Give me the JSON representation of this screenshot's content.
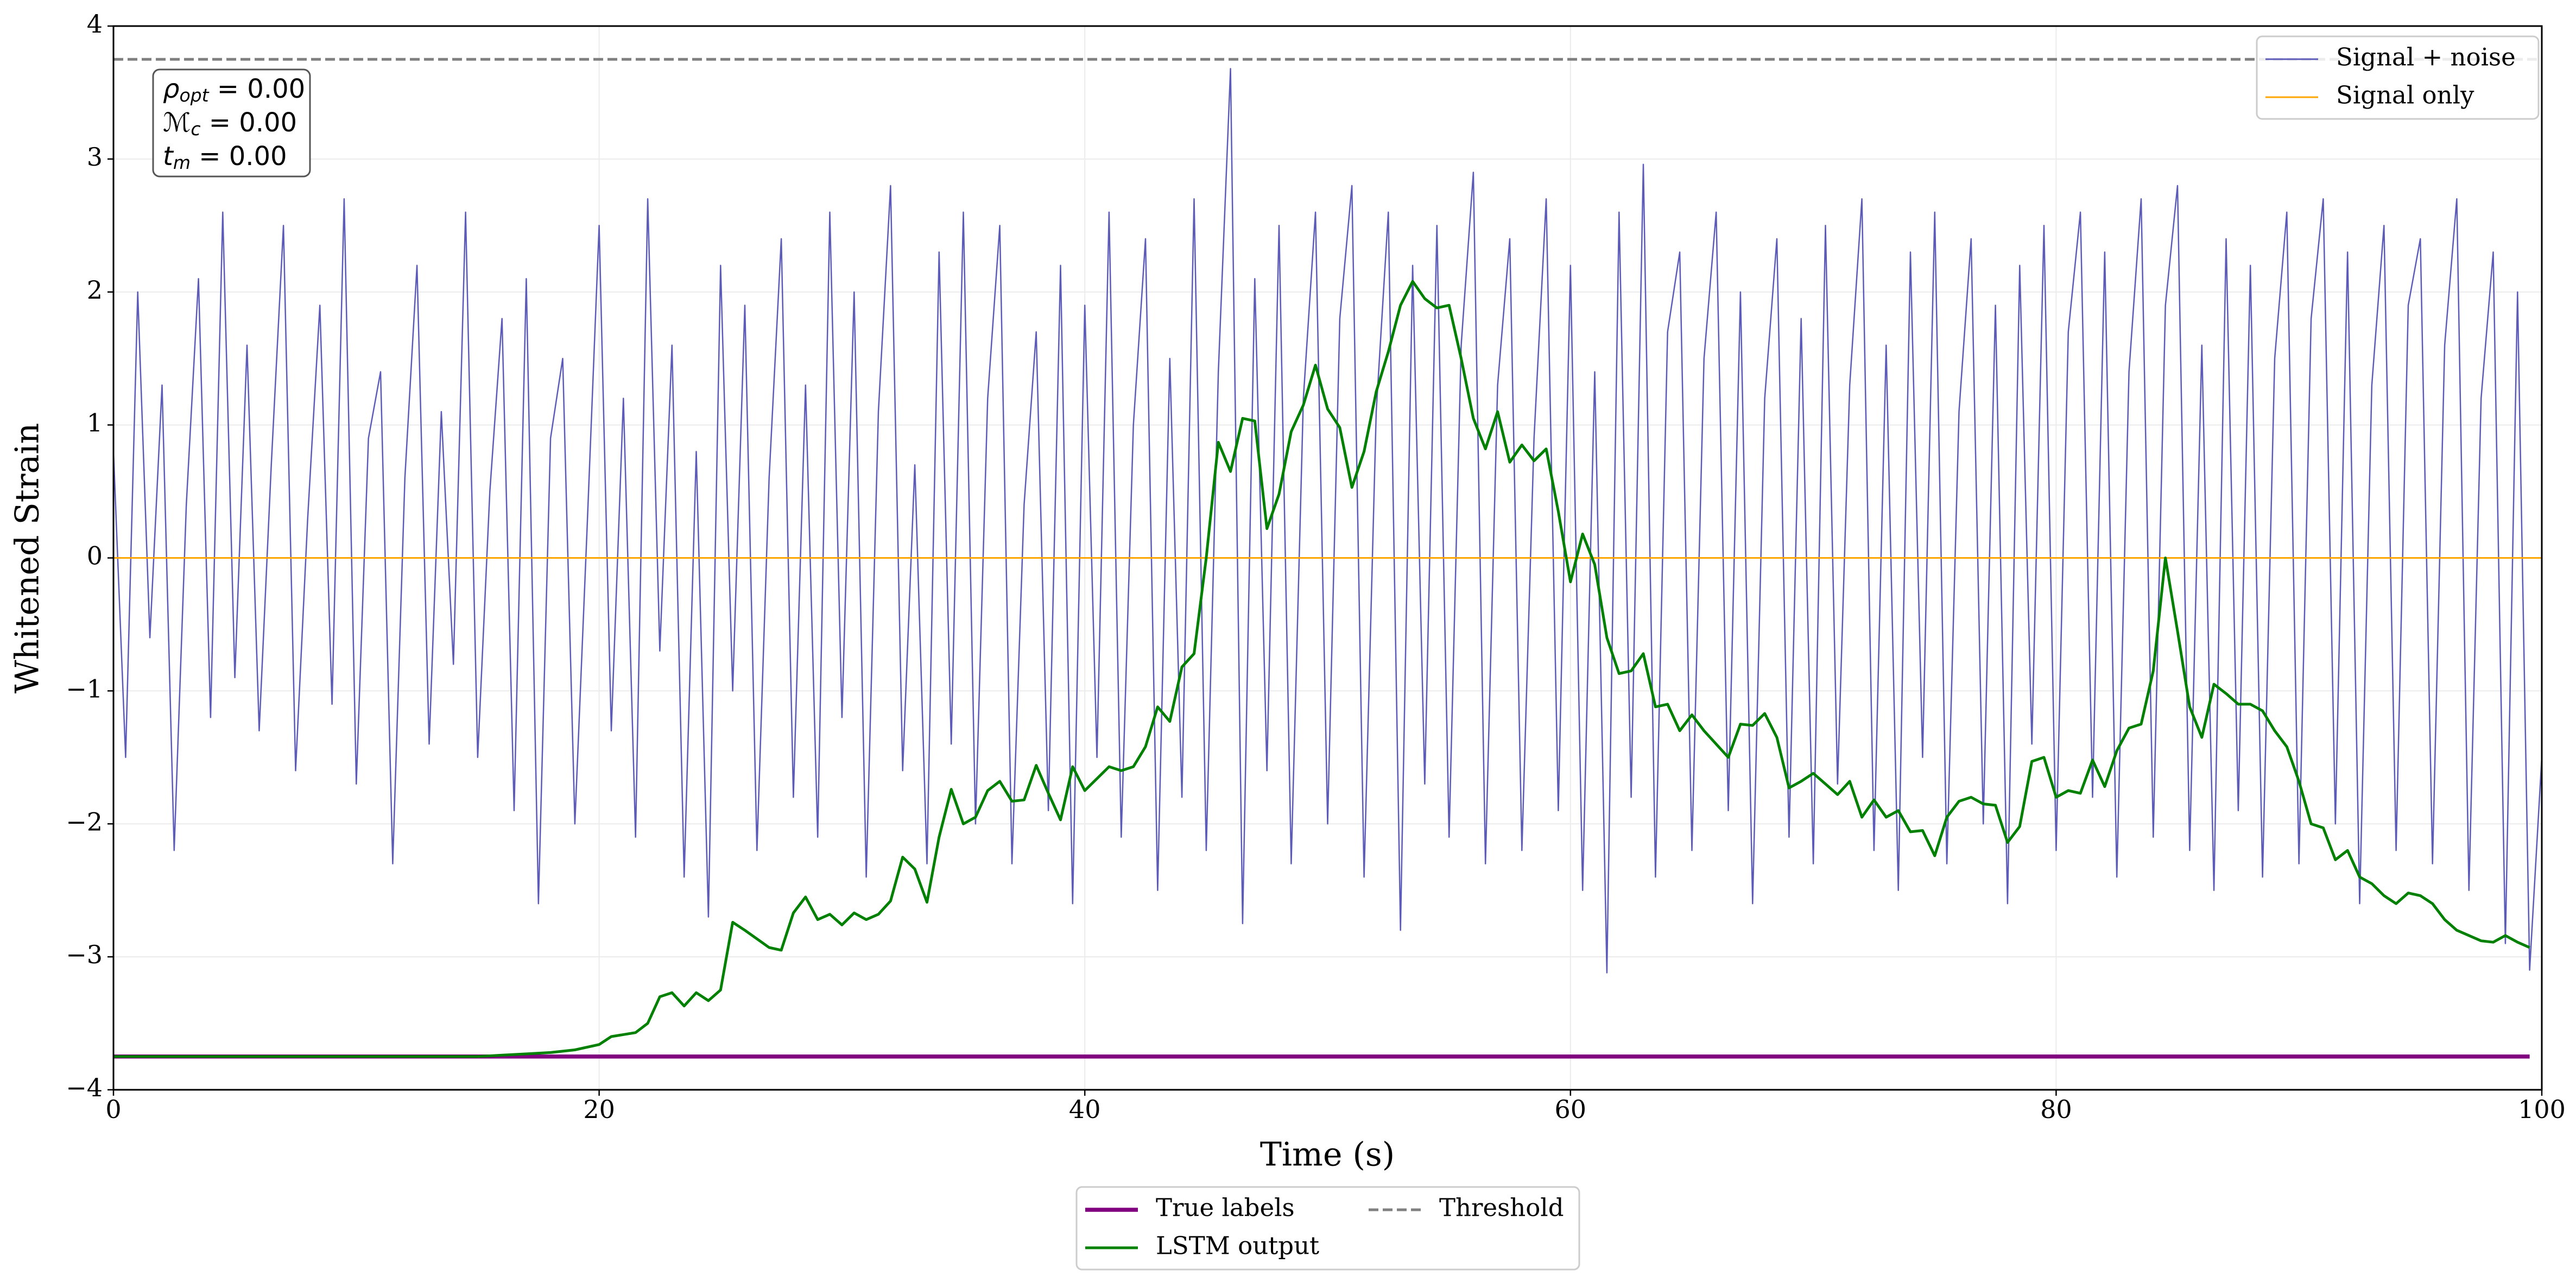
{
  "chart_data": {
    "type": "line",
    "xlabel": "Time (s)",
    "ylabel": "Whitened Strain",
    "xlim": [
      0,
      100
    ],
    "ylim": [
      -4,
      4
    ],
    "xticks": [
      0,
      20,
      40,
      60,
      80,
      100
    ],
    "yticks": [
      {
        "value": -4,
        "label": "−4"
      },
      {
        "value": -3,
        "label": "−3"
      },
      {
        "value": -2,
        "label": "−2"
      },
      {
        "value": -1,
        "label": "−1"
      },
      0,
      1,
      2,
      3,
      4
    ],
    "grid": true,
    "annotation": [
      {
        "symbol": "ρ",
        "sub": "opt",
        "text": " = 0.00"
      },
      {
        "symbol": "ℳ",
        "sub": "c",
        "text": " = 0.00"
      },
      {
        "symbol": "t",
        "sub": "m",
        "text": " = 0.00"
      }
    ],
    "series": [
      {
        "name": "Signal + noise",
        "color": "#5c5cb8",
        "legend": "upper right",
        "x": [
          0,
          0.5,
          1,
          1.5,
          2,
          2.5,
          3,
          3.5,
          4,
          4.5,
          5,
          5.5,
          6,
          6.5,
          7,
          7.5,
          8,
          8.5,
          9,
          9.5,
          10,
          10.5,
          11,
          11.5,
          12,
          12.5,
          13,
          13.5,
          14,
          14.5,
          15,
          15.5,
          16,
          16.5,
          17,
          17.5,
          18,
          18.5,
          19,
          19.5,
          20,
          20.5,
          21,
          21.5,
          22,
          22.5,
          23,
          23.5,
          24,
          24.5,
          25,
          25.5,
          26,
          26.5,
          27,
          27.5,
          28,
          28.5,
          29,
          29.5,
          30,
          30.5,
          31,
          31.5,
          32,
          32.5,
          33,
          33.5,
          34,
          34.5,
          35,
          35.5,
          36,
          36.5,
          37,
          37.5,
          38,
          38.5,
          39,
          39.5,
          40,
          40.5,
          41,
          41.5,
          42,
          42.5,
          43,
          43.5,
          44,
          44.5,
          45,
          45.5,
          46,
          46.5,
          47,
          47.5,
          48,
          48.5,
          49,
          49.5,
          50,
          50.5,
          51,
          51.5,
          52,
          52.5,
          53,
          53.5,
          54,
          54.5,
          55,
          55.5,
          56,
          56.5,
          57,
          57.5,
          58,
          58.5,
          59,
          59.5,
          60,
          60.5,
          61,
          61.5,
          62,
          62.5,
          63,
          63.5,
          64,
          64.5,
          65,
          65.5,
          66,
          66.5,
          67,
          67.5,
          68,
          68.5,
          69,
          69.5,
          70,
          70.5,
          71,
          71.5,
          72,
          72.5,
          73,
          73.5,
          74,
          74.5,
          75,
          75.5,
          76,
          76.5,
          77,
          77.5,
          78,
          78.5,
          79,
          79.5,
          80,
          80.5,
          81,
          81.5,
          82,
          82.5,
          83,
          83.5,
          84,
          84.5,
          85,
          85.5,
          86,
          86.5,
          87,
          87.5,
          88,
          88.5,
          89,
          89.5,
          90,
          90.5,
          91,
          91.5,
          92,
          92.5,
          93,
          93.5,
          94,
          94.5,
          95,
          95.5,
          96,
          96.5,
          97,
          97.5,
          98,
          98.5,
          99,
          99.5,
          100
        ],
        "values": [
          0.8,
          -1.5,
          2.0,
          -0.6,
          1.3,
          -2.2,
          0.4,
          2.1,
          -1.2,
          2.6,
          -0.9,
          1.6,
          -1.3,
          0.7,
          2.5,
          -1.6,
          0.3,
          1.9,
          -1.1,
          2.7,
          -1.7,
          0.9,
          1.4,
          -2.3,
          0.6,
          2.2,
          -1.4,
          1.1,
          -0.8,
          2.6,
          -1.5,
          0.5,
          1.8,
          -1.9,
          2.1,
          -2.6,
          0.9,
          1.5,
          -2.0,
          0.2,
          2.5,
          -1.3,
          1.2,
          -2.1,
          2.7,
          -0.7,
          1.6,
          -2.4,
          0.8,
          -2.7,
          2.2,
          -1.0,
          1.9,
          -2.2,
          0.6,
          2.4,
          -1.8,
          1.3,
          -2.1,
          2.6,
          -1.2,
          2.0,
          -2.4,
          1.1,
          2.8,
          -1.6,
          0.7,
          -2.3,
          2.3,
          -1.4,
          2.6,
          -2.0,
          1.2,
          2.5,
          -2.3,
          0.4,
          1.7,
          -1.9,
          2.2,
          -2.6,
          1.9,
          -1.5,
          2.6,
          -2.1,
          1.0,
          2.4,
          -2.5,
          1.5,
          -1.8,
          2.7,
          -2.2,
          1.4,
          3.68,
          -2.75,
          2.1,
          -1.6,
          2.5,
          -2.3,
          1.2,
          2.6,
          -2.0,
          1.8,
          2.8,
          -2.4,
          1.1,
          2.6,
          -2.8,
          2.2,
          -1.7,
          2.5,
          -2.1,
          1.6,
          2.9,
          -2.3,
          1.3,
          2.4,
          -2.2,
          0.9,
          2.7,
          -1.9,
          2.2,
          -2.5,
          1.4,
          -3.12,
          2.6,
          -1.8,
          2.96,
          -2.4,
          1.7,
          2.3,
          -2.2,
          1.5,
          2.6,
          -1.9,
          2.0,
          -2.6,
          1.2,
          2.4,
          -2.1,
          1.8,
          -2.3,
          2.5,
          -1.7,
          1.3,
          2.7,
          -2.2,
          1.6,
          -2.5,
          2.3,
          -1.5,
          2.6,
          -2.3,
          1.1,
          2.4,
          -2.0,
          1.9,
          -2.6,
          2.2,
          -1.4,
          2.5,
          -2.2,
          1.7,
          2.6,
          -1.8,
          2.3,
          -2.4,
          1.4,
          2.7,
          -2.1,
          1.9,
          2.8,
          -2.2,
          1.6,
          -2.5,
          2.4,
          -1.9,
          2.2,
          -2.4,
          1.5,
          2.6,
          -2.3,
          1.8,
          2.7,
          -2.0,
          2.3,
          -2.6,
          1.3,
          2.5,
          -2.2,
          1.9,
          2.4,
          -2.3,
          1.6,
          2.7,
          -2.5,
          1.2,
          2.3,
          -2.9,
          2.0,
          -3.1,
          -1.5
        ]
      },
      {
        "name": "Signal only",
        "color": "#ffa500",
        "legend": "upper right",
        "x": [
          0,
          100
        ],
        "values": [
          0,
          0
        ]
      },
      {
        "name": "True labels",
        "color": "#800080",
        "legend": "lower center",
        "x": [
          0,
          99.5
        ],
        "values": [
          -3.75,
          -3.75
        ]
      },
      {
        "name": "LSTM output",
        "color": "#008000",
        "legend": "lower center",
        "x": [
          0,
          15,
          16,
          17,
          18,
          19,
          20,
          20.5,
          21.5,
          22,
          22.5,
          23,
          23.5,
          24,
          24.5,
          25,
          25.5,
          26,
          27,
          27.5,
          28,
          28.5,
          29,
          29.5,
          30,
          30.5,
          31,
          31.5,
          32,
          32.5,
          33,
          33.5,
          34,
          34.5,
          35,
          35.5,
          36,
          36.5,
          37,
          37.5,
          38,
          38.5,
          39,
          39.5,
          40,
          41,
          41.5,
          42,
          42.5,
          43,
          43.5,
          44,
          44.5,
          45,
          45.5,
          46,
          46.5,
          47,
          47.5,
          48,
          48.5,
          49,
          49.5,
          50,
          50.5,
          51,
          51.5,
          52,
          52.5,
          53,
          53.5,
          54,
          54.5,
          55,
          55.5,
          56,
          56.5,
          57,
          57.5,
          58,
          58.5,
          59,
          59.5,
          60,
          60.5,
          61,
          61.5,
          62,
          62.5,
          63,
          63.5,
          64,
          64.5,
          65,
          65.5,
          66,
          66.5,
          67,
          67.5,
          68,
          68.5,
          69,
          69.5,
          70,
          70.5,
          71,
          71.5,
          72,
          72.5,
          73,
          73.5,
          74,
          74.5,
          75,
          75.5,
          76,
          76.5,
          77,
          77.5,
          78,
          78.5,
          79,
          79.5,
          80,
          80.5,
          81,
          81.5,
          82,
          82.5,
          83,
          83.5,
          84,
          84.5,
          85,
          85.5,
          86,
          86.5,
          87,
          87.5,
          88,
          88.5,
          89,
          89.5,
          90,
          90.5,
          91,
          91.5,
          92,
          92.5,
          93,
          93.5,
          94,
          94.5,
          95,
          95.5,
          96,
          96.5,
          97,
          97.5,
          98,
          98.5,
          99,
          99.5
        ],
        "values": [
          -3.75,
          -3.75,
          -3.74,
          -3.73,
          -3.72,
          -3.7,
          -3.66,
          -3.6,
          -3.57,
          -3.5,
          -3.3,
          -3.27,
          -3.37,
          -3.27,
          -3.33,
          -3.25,
          -2.74,
          -2.8,
          -2.93,
          -2.95,
          -2.67,
          -2.55,
          -2.72,
          -2.68,
          -2.76,
          -2.67,
          -2.72,
          -2.68,
          -2.58,
          -2.25,
          -2.34,
          -2.59,
          -2.1,
          -1.74,
          -2.0,
          -1.95,
          -1.75,
          -1.68,
          -1.83,
          -1.82,
          -1.56,
          -1.77,
          -1.97,
          -1.57,
          -1.75,
          -1.57,
          -1.6,
          -1.57,
          -1.42,
          -1.12,
          -1.23,
          -0.82,
          -0.72,
          0.0,
          0.87,
          0.65,
          1.05,
          1.03,
          0.22,
          0.48,
          0.95,
          1.15,
          1.45,
          1.12,
          0.98,
          0.53,
          0.8,
          1.25,
          1.55,
          1.9,
          2.08,
          1.95,
          1.88,
          1.9,
          1.5,
          1.05,
          0.82,
          1.1,
          0.72,
          0.85,
          0.73,
          0.82,
          0.35,
          -0.18,
          0.18,
          -0.05,
          -0.6,
          -0.87,
          -0.85,
          -0.72,
          -1.12,
          -1.1,
          -1.3,
          -1.18,
          -1.3,
          -1.4,
          -1.5,
          -1.25,
          -1.26,
          -1.17,
          -1.35,
          -1.73,
          -1.68,
          -1.62,
          -1.7,
          -1.78,
          -1.68,
          -1.95,
          -1.82,
          -1.95,
          -1.9,
          -2.06,
          -2.05,
          -2.24,
          -1.95,
          -1.83,
          -1.8,
          -1.85,
          -1.86,
          -2.14,
          -2.02,
          -1.53,
          -1.5,
          -1.8,
          -1.75,
          -1.77,
          -1.52,
          -1.72,
          -1.45,
          -1.28,
          -1.25,
          -0.85,
          0.0,
          -0.55,
          -1.12,
          -1.35,
          -0.95,
          -1.02,
          -1.1,
          -1.1,
          -1.15,
          -1.3,
          -1.42,
          -1.68,
          -2.0,
          -2.03,
          -2.27,
          -2.2,
          -2.4,
          -2.45,
          -2.54,
          -2.6,
          -2.52,
          -2.54,
          -2.6,
          -2.72,
          -2.8,
          -2.84,
          -2.88,
          -2.89,
          -2.84,
          -2.89,
          -2.93
        ]
      },
      {
        "name": "Threshold",
        "color": "#808080",
        "dashed": true,
        "legend": "lower center",
        "x": [
          0,
          100
        ],
        "values": [
          3.75,
          3.75
        ]
      }
    ]
  }
}
